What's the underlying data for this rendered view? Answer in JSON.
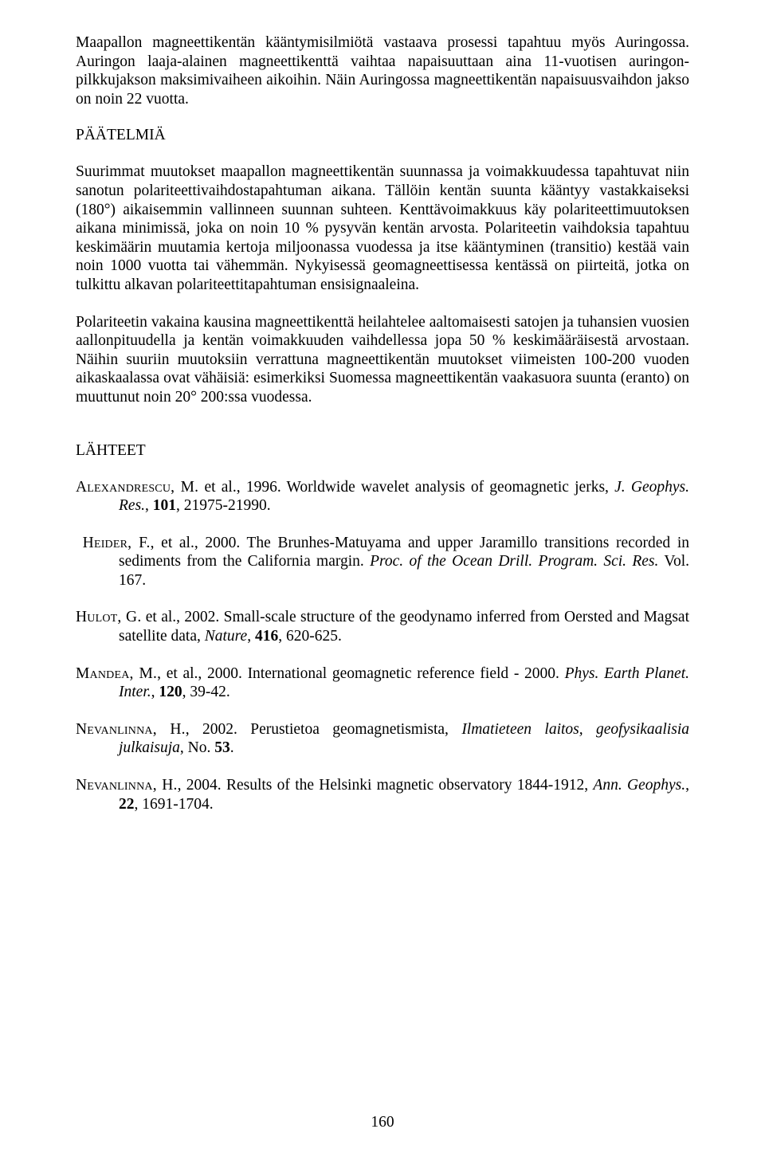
{
  "paragraphs": {
    "p1": "Maapallon magneettikentän kääntymisilmiötä vastaava prosessi tapahtuu myös Auringossa. Auringon laaja-alainen magneettikenttä vaihtaa napaisuuttaan aina 11-vuotisen auringon­pilkkujakson maksimivaiheen aikoihin. Näin Auringossa magneettikentän napaisuusvaihdon jakso on noin 22 vuotta.",
    "heading_conclusions": "PÄÄTELMIÄ",
    "p2": "Suurimmat muutokset maapallon magneettikentän suunnassa ja voimakkuudessa tapahtuvat niin sanotun polariteettivaihdostapahtuman aikana. Tällöin kentän suunta kääntyy vastakkai­seksi (180°) aikaisemmin vallinneen suunnan suhteen. Kenttävoimakkuus käy polariteetti­muutoksen aikana minimissä, joka on noin 10 % pysyvän kentän arvosta. Polariteetin vaih­doksia tapahtuu keskimäärin muutamia kertoja miljoonassa vuodessa ja itse kääntyminen (transitio) kestää vain noin 1000 vuotta tai vähemmän. Nykyisessä geomagneettisessa ken­tässä on piirteitä, jotka on tulkittu alkavan polariteettitapahtuman ensisignaaleina.",
    "p3": "Polariteetin vakaina kausina magneettikenttä heilahtelee aaltomaisesti satojen ja tuhansien vuosien aallonpituudella ja kentän voimakkuuden vaihdellessa jopa 50 % keskimääräisestä arvostaan. Näihin suuriin muutoksiin verrattuna magneettikentän muutokset viimeisten 100-200 vuoden aikaskaalassa ovat vähäisiä: esimerkiksi Suomessa magneettikentän vaakasuora suunta (eranto) on muuttunut noin 20° 200:ssa vuodessa.",
    "heading_refs": "LÄHTEET"
  },
  "references": {
    "r1": {
      "author": "Alexandrescu, M.",
      "rest_pre": " et al.,  1996. Worldwide wavelet analysis of geomagnetic jerks, ",
      "ital": "J. Geophys. Res.",
      "post": ", ",
      "vol": "101",
      "tail": ", 21975-21990."
    },
    "r2": {
      "author": "Heider, F.",
      "rest_pre": ", et al., 2000. The Brunhes-Matuyama and upper Jaramillo transitions recorded in sediments from the California margin. ",
      "ital": "Proc. of the Ocean Drill. Program. Sci. Res.",
      "tail": " Vol. 167."
    },
    "r3": {
      "author": "Hulot, G.",
      "rest_pre": " et al., 2002. Small-scale structure of the geodynamo inferred from Oersted and Magsat satellite data, ",
      "ital": "Nature",
      "post": ", ",
      "vol": "416",
      "tail": ", 620-625."
    },
    "r4": {
      "author": "Mandea, M.",
      "rest_pre": ", et al., 2000. International geomagnetic reference field - 2000. ",
      "ital": "Phys. Earth Planet. Inter.",
      "post": ", ",
      "vol": "120",
      "tail": ", 39-42."
    },
    "r5": {
      "author": "Nevanlinna, H.",
      "rest_pre": ", 2002. Perustietoa geomagnetismista, ",
      "ital": "Ilmatieteen laitos, geofysikaalisia julkaisuja",
      "post": ", No. ",
      "vol": "53",
      "tail": "."
    },
    "r6": {
      "author": "Nevanlinna, H.",
      "rest_pre": ", 2004. Results of the Helsinki magnetic observatory 1844-1912, ",
      "ital": "Ann. Geophys.",
      "post": ", ",
      "vol": "22",
      "tail": ", 1691-1704."
    }
  },
  "page_number": "160"
}
